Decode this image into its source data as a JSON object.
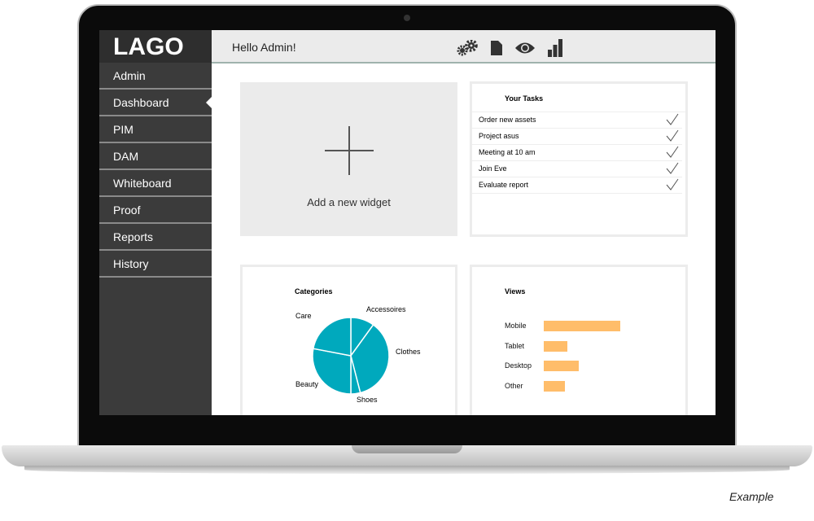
{
  "app": {
    "logo": "LAGO",
    "greeting": "Hello Admin!"
  },
  "sidebar": {
    "items": [
      {
        "label": "Admin"
      },
      {
        "label": "Dashboard",
        "active": true
      },
      {
        "label": "PIM"
      },
      {
        "label": "DAM"
      },
      {
        "label": "Whiteboard"
      },
      {
        "label": "Proof"
      },
      {
        "label": "Reports"
      },
      {
        "label": "History"
      }
    ]
  },
  "toolbar": {
    "icons": [
      "gears-icon",
      "document-icon",
      "eye-icon",
      "bar-chart-icon"
    ]
  },
  "widgets": {
    "add_label": "Add a new widget",
    "tasks": {
      "title": "Your Tasks",
      "items": [
        "Order new assets",
        "Project asus",
        "Meeting at 10 am",
        "Join Eve",
        "Evaluate report"
      ]
    }
  },
  "chart_data": [
    {
      "type": "pie",
      "title": "Categories",
      "color": "#00a9bd",
      "categories": [
        "Accessoires",
        "Clothes",
        "Shoes",
        "Beauty",
        "Care"
      ],
      "values": [
        10,
        36,
        4,
        28,
        22
      ]
    },
    {
      "type": "bar",
      "title": "Views",
      "orientation": "horizontal",
      "color": "#ffbd6a",
      "categories": [
        "Mobile",
        "Tablet",
        "Desktop",
        "Other"
      ],
      "values": [
        94,
        29,
        43,
        26
      ]
    }
  ],
  "caption": "Example"
}
